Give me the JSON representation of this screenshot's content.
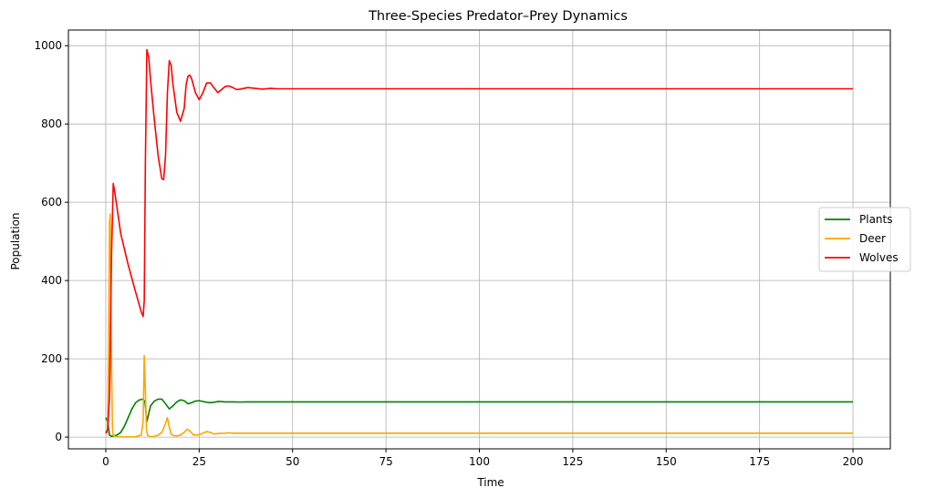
{
  "chart_data": {
    "type": "line",
    "title": "Three-Species Predator–Prey Dynamics",
    "xlabel": "Time",
    "ylabel": "Population",
    "xlim": [
      -10,
      210
    ],
    "ylim": [
      -30,
      1040
    ],
    "xticks": [
      0,
      25,
      50,
      75,
      100,
      125,
      150,
      175,
      200
    ],
    "yticks": [
      0,
      200,
      400,
      600,
      800,
      1000
    ],
    "grid": true,
    "legend_position": "center-right",
    "series": [
      {
        "name": "Plants",
        "color": "#008000",
        "x": [
          0,
          0.5,
          1,
          1.5,
          2,
          3,
          4,
          5,
          6,
          7,
          8,
          9,
          10,
          10.5,
          11,
          11.5,
          12,
          13,
          14,
          15,
          16,
          17,
          18,
          19,
          20,
          21,
          22,
          23,
          24,
          25,
          26,
          27,
          28,
          29,
          30,
          32,
          34,
          36,
          38,
          40,
          45,
          50,
          200
        ],
        "values": [
          50,
          40,
          5,
          2,
          3,
          5,
          12,
          28,
          50,
          72,
          88,
          95,
          97,
          90,
          40,
          60,
          80,
          92,
          97,
          97,
          85,
          72,
          80,
          90,
          95,
          93,
          85,
          88,
          92,
          93,
          91,
          89,
          88,
          89,
          91,
          90,
          90,
          89.5,
          90,
          90,
          90,
          90,
          90
        ]
      },
      {
        "name": "Deer",
        "color": "#ffa500",
        "x": [
          0,
          0.5,
          0.8,
          1,
          1.2,
          1.5,
          1.8,
          2,
          2.5,
          3,
          5,
          8,
          9.5,
          10,
          10.3,
          10.6,
          10.9,
          11.2,
          11.6,
          12,
          13,
          14,
          15,
          16,
          16.5,
          17,
          17.5,
          18,
          19,
          20,
          21,
          21.8,
          22.6,
          23.5,
          25,
          26,
          27,
          28,
          29,
          30,
          32,
          33,
          34,
          36,
          40,
          50,
          200
        ],
        "values": [
          10,
          12,
          300,
          550,
          570,
          200,
          20,
          5,
          2,
          1,
          0.5,
          1,
          5,
          40,
          208,
          120,
          20,
          5,
          2,
          1,
          2,
          5,
          12,
          35,
          50,
          25,
          8,
          4,
          3,
          5,
          12,
          20,
          15,
          5,
          6,
          10,
          14,
          12,
          8,
          9,
          10,
          11,
          10,
          10,
          10,
          10,
          10
        ]
      },
      {
        "name": "Wolves",
        "color": "#ff0000",
        "x": [
          0,
          0.5,
          1,
          1.5,
          2,
          2.5,
          4,
          6,
          8,
          9.5,
          10,
          10.3,
          10.6,
          11,
          11.5,
          12,
          13,
          14,
          15,
          15.5,
          16,
          16.5,
          17,
          17.5,
          18,
          19,
          20,
          21,
          21.5,
          22,
          22.5,
          23,
          24,
          25,
          26,
          27,
          28,
          29,
          30,
          31,
          32,
          33,
          34,
          35,
          36,
          38,
          40,
          42,
          44,
          46,
          48,
          50,
          200
        ],
        "values": [
          10,
          20,
          100,
          450,
          648,
          620,
          520,
          440,
          370,
          320,
          308,
          350,
          700,
          990,
          970,
          910,
          810,
          720,
          660,
          658,
          720,
          880,
          962,
          950,
          900,
          830,
          807,
          840,
          900,
          922,
          925,
          915,
          880,
          862,
          880,
          905,
          905,
          892,
          880,
          888,
          896,
          897,
          893,
          888,
          889,
          893,
          891,
          889,
          891,
          890,
          890,
          890,
          890
        ]
      }
    ]
  }
}
